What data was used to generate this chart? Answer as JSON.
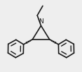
{
  "bg_color": "#eeeeee",
  "line_color": "#1a1a1a",
  "lw": 1.2,
  "fig_w": 1.17,
  "fig_h": 1.02,
  "dpi": 100,
  "xlim": [
    -1.1,
    1.1
  ],
  "ylim": [
    -1.05,
    1.05
  ]
}
